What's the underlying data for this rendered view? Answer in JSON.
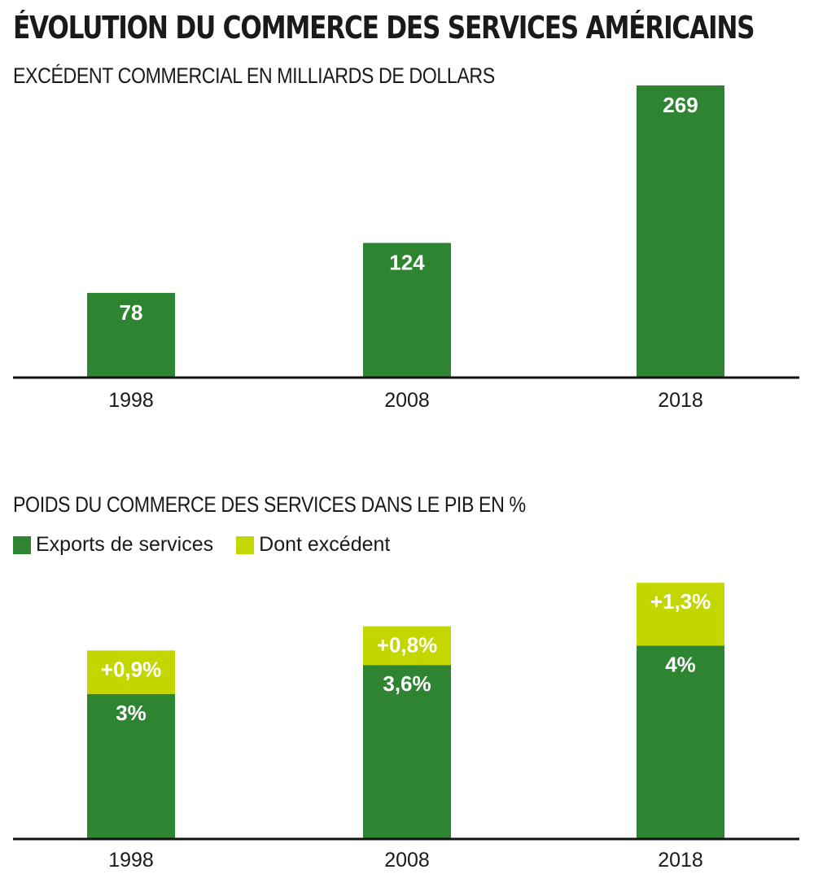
{
  "title": "ÉVOLUTION DU COMMERCE DES SERVICES AMÉRICAINS",
  "colors": {
    "dark_green": "#2f8432",
    "light_green": "#c3d600",
    "axis": "#111111"
  },
  "chart_data": [
    {
      "type": "bar",
      "title": "EXCÉDENT COMMERCIAL EN MILLIARDS DE DOLLARS",
      "categories": [
        "1998",
        "2008",
        "2018"
      ],
      "values": [
        78,
        124,
        269
      ],
      "value_labels": [
        "78",
        "124",
        "269"
      ],
      "ylim": [
        0,
        269
      ],
      "grid": false
    },
    {
      "type": "bar",
      "stacked": true,
      "title": "POIDS DU COMMERCE DES SERVICES DANS LE PIB EN %",
      "categories": [
        "1998",
        "2008",
        "2018"
      ],
      "series": [
        {
          "name": "Exports de services",
          "values": [
            3,
            3.6,
            4
          ],
          "labels": [
            "3%",
            "3,6%",
            "4%"
          ],
          "color": "#2f8432"
        },
        {
          "name": "Dont excédent",
          "values": [
            0.9,
            0.8,
            1.3
          ],
          "labels": [
            "+0,9%",
            "+0,8%",
            "+1,3%"
          ],
          "color": "#c3d600"
        }
      ],
      "legend": "top-left",
      "ylim": [
        0,
        5.3
      ],
      "grid": false
    }
  ]
}
